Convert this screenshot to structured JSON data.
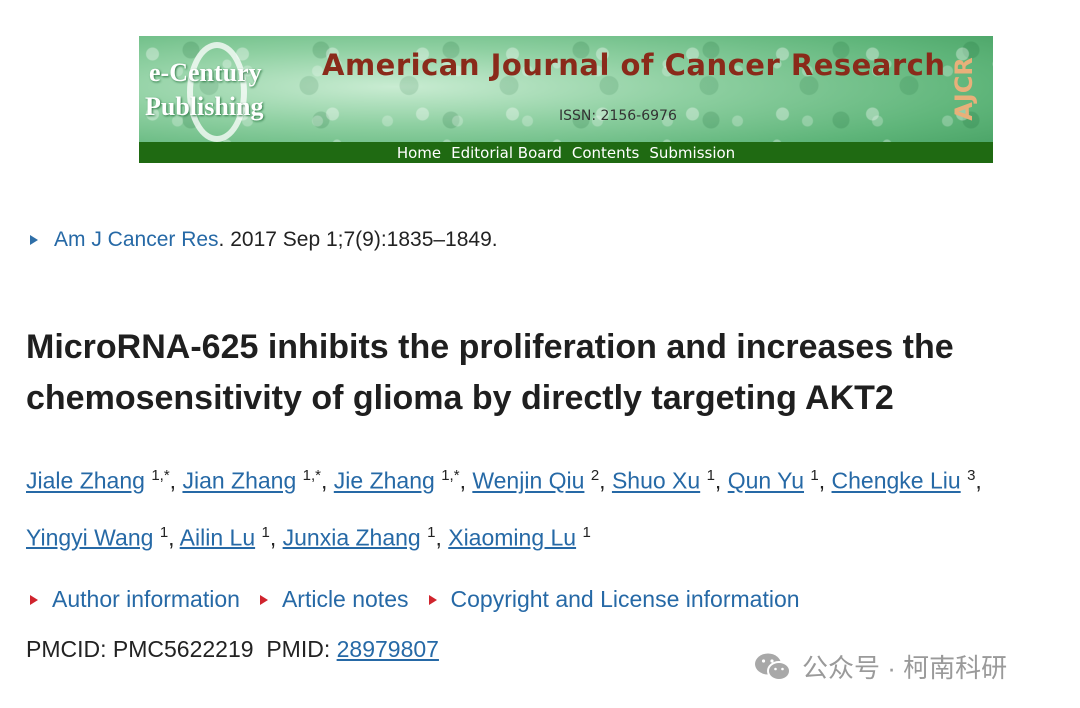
{
  "banner": {
    "logo_line1": "e-Century",
    "logo_line2": "Publishing",
    "journal_title": "American Journal of Cancer Research",
    "issn": "ISSN: 2156-6976",
    "mark": "AJCR",
    "nav": [
      "Home",
      "Editorial Board",
      "Contents",
      "Submission"
    ]
  },
  "citation": {
    "journal_link": "Am J Cancer Res",
    "details": ". 2017 Sep 1;7(9):1835–1849."
  },
  "article": {
    "title": "MicroRNA-625 inhibits the proliferation and increases the chemosensitivity of glioma by directly targeting AKT2"
  },
  "authors": [
    {
      "name": "Jiale Zhang",
      "aff": "1,*"
    },
    {
      "name": "Jian Zhang",
      "aff": "1,*"
    },
    {
      "name": "Jie Zhang",
      "aff": "1,*"
    },
    {
      "name": "Wenjin Qiu",
      "aff": "2"
    },
    {
      "name": "Shuo Xu",
      "aff": "1"
    },
    {
      "name": "Qun Yu",
      "aff": "1"
    },
    {
      "name": "Chengke Liu",
      "aff": "3"
    },
    {
      "name": "Yingyi Wang",
      "aff": "1"
    },
    {
      "name": "Ailin Lu",
      "aff": "1"
    },
    {
      "name": "Junxia Zhang",
      "aff": "1"
    },
    {
      "name": "Xiaoming Lu",
      "aff": "1"
    }
  ],
  "info_links": [
    "Author information",
    "Article notes",
    "Copyright and License information"
  ],
  "ids": {
    "pmcid_label": "PMCID: PMC5622219",
    "pmid_label": "PMID:",
    "pmid_value": "28979807"
  },
  "watermark": {
    "text": "公众号 · 柯南科研",
    "icon": "wechat-icon"
  },
  "colors": {
    "link": "#2669a6",
    "info_triangle": "#d0242d",
    "nav_bar": "#1f6a12",
    "journal_title": "#8a2a1a"
  }
}
